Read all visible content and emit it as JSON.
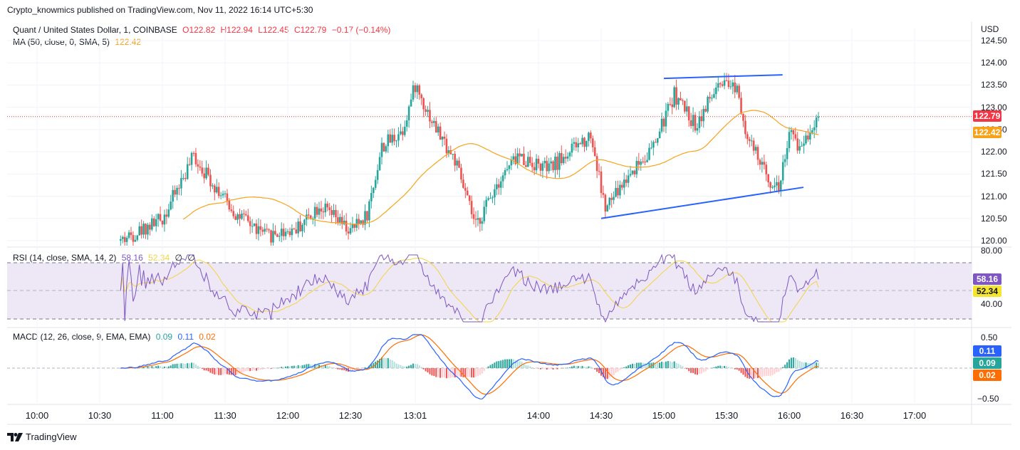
{
  "header": {
    "published": "Crypto_knowmics published on TradingView.com, Nov 11, 2022 16:14 UTC+5:30"
  },
  "price_legend": {
    "symbol": "Quant / United States Dollar, 1, COINBASE",
    "open": "O122.82",
    "high": "H122.94",
    "low": "L122.45",
    "close": "C122.79",
    "change": "−0.17 (−0.14%)"
  },
  "ma_legend": {
    "label": "MA (50, close, 0, SMA, 5)",
    "value": "122.42"
  },
  "rsi_legend": {
    "label": "RSI (14, close, SMA, 14, 2)",
    "rsi": "58.16",
    "sma": "52.34",
    "extra1": "∅",
    "extra2": "∅"
  },
  "macd_legend": {
    "label": "MACD (12, 26, close, 9, EMA, EMA)",
    "hist": "0.09",
    "macd": "0.11",
    "signal": "0.02"
  },
  "price_axis": {
    "currency": "USD",
    "ticks": [
      "124.50",
      "124.00",
      "123.50",
      "123.00",
      "122.50",
      "122.00",
      "121.50",
      "121.00",
      "120.50",
      "120.00"
    ],
    "last_price": "122.79",
    "ma_price": "122.42"
  },
  "rsi_axis": {
    "ticks": [
      "80.00",
      "40.00"
    ],
    "rsi_value": "58.16",
    "sma_value": "52.34"
  },
  "macd_axis": {
    "ticks": [
      "0.50",
      "−0.50"
    ],
    "macd_value": "0.11",
    "hist_value": "0.09",
    "signal_value": "0.02"
  },
  "time_axis": {
    "ticks": [
      "10:00",
      "10:30",
      "11:00",
      "11:30",
      "12:00",
      "12:30",
      "13:01",
      "14:00",
      "14:30",
      "15:00",
      "15:30",
      "16:00",
      "16:30",
      "17:00"
    ]
  },
  "footer": {
    "brand": "TradingView"
  },
  "colors": {
    "up": "#26a69a",
    "down": "#ef5350",
    "ma": "#f7a21b",
    "rsi": "#7e57c2",
    "rsi_sma": "#f5d342",
    "macd": "#2962ff",
    "signal": "#ff6d00",
    "trendline": "#2962ff",
    "price_label": "#f23645",
    "rsi_band": "#ede7f6"
  },
  "chart_data": {
    "type": "candlestick",
    "title": "Quant / United States Dollar, 1, COINBASE",
    "price_ylim": [
      120.0,
      124.5
    ],
    "trendlines": [
      {
        "from": {
          "time": "15:00",
          "price": 123.65
        },
        "to": {
          "time": "15:50",
          "price": 123.73
        }
      },
      {
        "from": {
          "time": "14:30",
          "price": 120.5
        },
        "to": {
          "time": "16:00",
          "price": 121.2
        }
      }
    ],
    "price_keypoints": [
      {
        "time": "10:40",
        "price": 120.0
      },
      {
        "time": "11:00",
        "price": 120.5
      },
      {
        "time": "11:15",
        "price": 121.9
      },
      {
        "time": "11:35",
        "price": 120.6
      },
      {
        "time": "11:50",
        "price": 120.1
      },
      {
        "time": "12:05",
        "price": 120.3
      },
      {
        "time": "12:15",
        "price": 120.8
      },
      {
        "time": "12:30",
        "price": 120.2
      },
      {
        "time": "12:38",
        "price": 120.6
      },
      {
        "time": "12:45",
        "price": 122.1
      },
      {
        "time": "12:55",
        "price": 122.5
      },
      {
        "time": "13:01",
        "price": 123.5
      },
      {
        "time": "13:10",
        "price": 122.6
      },
      {
        "time": "13:20",
        "price": 121.8
      },
      {
        "time": "13:30",
        "price": 120.3
      },
      {
        "time": "13:40",
        "price": 121.3
      },
      {
        "time": "13:50",
        "price": 121.9
      },
      {
        "time": "14:05",
        "price": 121.6
      },
      {
        "time": "14:15",
        "price": 122.0
      },
      {
        "time": "14:25",
        "price": 122.4
      },
      {
        "time": "14:32",
        "price": 120.7
      },
      {
        "time": "14:45",
        "price": 121.6
      },
      {
        "time": "14:55",
        "price": 122.1
      },
      {
        "time": "15:05",
        "price": 123.3
      },
      {
        "time": "15:15",
        "price": 122.6
      },
      {
        "time": "15:25",
        "price": 123.4
      },
      {
        "time": "15:35",
        "price": 123.5
      },
      {
        "time": "15:40",
        "price": 122.3
      },
      {
        "time": "15:50",
        "price": 121.4
      },
      {
        "time": "15:55",
        "price": 121.2
      },
      {
        "time": "16:00",
        "price": 122.4
      },
      {
        "time": "16:05",
        "price": 122.1
      },
      {
        "time": "16:10",
        "price": 122.5
      },
      {
        "time": "16:14",
        "price": 122.79
      }
    ],
    "rsi_levels": [
      70,
      30
    ],
    "rsi_last": 58.16,
    "rsi_sma_last": 52.34,
    "macd_last": 0.11,
    "signal_last": 0.02,
    "hist_last": 0.09,
    "macd_ylim": [
      -0.5,
      0.5
    ]
  }
}
